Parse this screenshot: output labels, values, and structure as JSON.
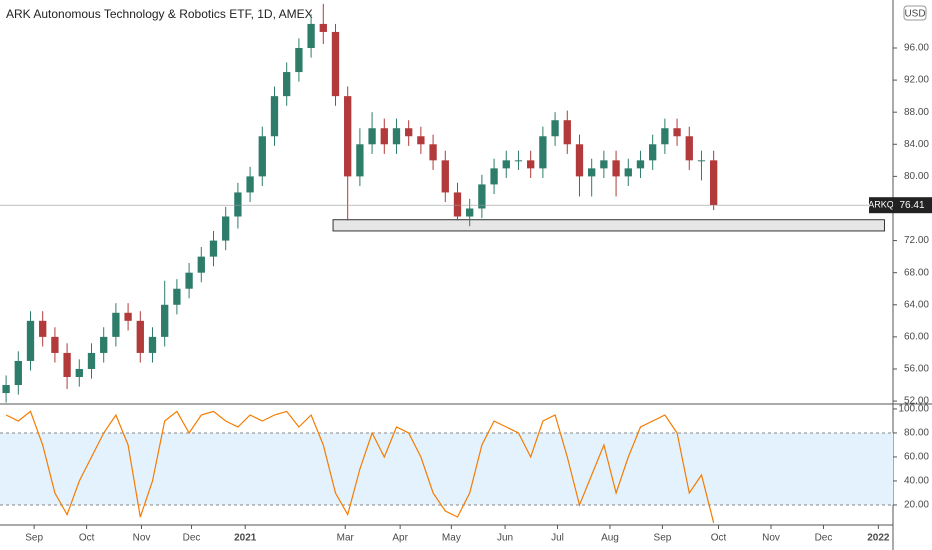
{
  "chart_data": [
    {
      "type": "candlestick",
      "title": "ARK Autonomous Technology & Robotics ETF, 1D, AMEX",
      "currency": "USD",
      "symbol": "ARKQ",
      "up_color": "#2e7d6b",
      "down_color": "#b23a3a",
      "xlim": [
        0,
        73.2
      ],
      "ylim": [
        51.76,
        101.98
      ],
      "yticks": [
        {
          "value": 52,
          "label": "52.00"
        },
        {
          "value": 56,
          "label": "56.00"
        },
        {
          "value": 60,
          "label": "60.00"
        },
        {
          "value": 64,
          "label": "64.00"
        },
        {
          "value": 68,
          "label": "68.00"
        },
        {
          "value": 72,
          "label": "72.00"
        },
        {
          "value": 76,
          "label": "76.00"
        },
        {
          "value": 80,
          "label": "80.00"
        },
        {
          "value": 84,
          "label": "84.00"
        },
        {
          "value": 88,
          "label": "88.00"
        },
        {
          "value": 92,
          "label": "92.00"
        },
        {
          "value": 96,
          "label": "96.00"
        }
      ],
      "x": [
        0.5,
        1.5,
        2.5,
        3.5,
        4.5,
        5.5,
        6.5,
        7.5,
        8.5,
        9.5,
        10.5,
        11.5,
        12.5,
        13.5,
        14.5,
        15.5,
        16.5,
        17.5,
        18.5,
        19.5,
        20.5,
        21.5,
        22.5,
        23.5,
        24.5,
        25.5,
        26.5,
        27.5,
        28.5,
        29.5,
        30.5,
        31.5,
        32.5,
        33.5,
        34.5,
        35.5,
        36.5,
        37.5,
        38.5,
        39.5,
        40.5,
        41.5,
        42.5,
        43.5,
        44.5,
        45.5,
        46.5,
        47.5,
        48.5,
        49.5,
        50.5,
        51.5,
        52.5,
        53.5,
        54.5,
        55.5,
        56.5,
        57.5,
        58.5
      ],
      "candles": [
        [
          53,
          55.2,
          51.8,
          54
        ],
        [
          54,
          58.2,
          52.8,
          57
        ],
        [
          57,
          63.2,
          55.8,
          62
        ],
        [
          62,
          63.2,
          58.8,
          60
        ],
        [
          60,
          61.2,
          56.8,
          58
        ],
        [
          58,
          59.2,
          53.5,
          55
        ],
        [
          55,
          57.2,
          53.8,
          56
        ],
        [
          56,
          59.2,
          54.8,
          58
        ],
        [
          58,
          61.2,
          56.8,
          60
        ],
        [
          60,
          64.2,
          58.8,
          63
        ],
        [
          63,
          64.2,
          60.8,
          62
        ],
        [
          62,
          63.2,
          56.8,
          58
        ],
        [
          58,
          61.2,
          56.8,
          60
        ],
        [
          60,
          67,
          58.8,
          64
        ],
        [
          64,
          67.2,
          62.8,
          66
        ],
        [
          66,
          69.2,
          64.8,
          68
        ],
        [
          68,
          71.2,
          66.8,
          70
        ],
        [
          70,
          73.2,
          68.8,
          72
        ],
        [
          72,
          76.2,
          70.8,
          75
        ],
        [
          75,
          79.2,
          73.5,
          78
        ],
        [
          78,
          81.2,
          76.8,
          80
        ],
        [
          80,
          86.2,
          78.8,
          85
        ],
        [
          85,
          91.2,
          83.8,
          90
        ],
        [
          90,
          94.2,
          88.8,
          93
        ],
        [
          93,
          97.2,
          91.8,
          96
        ],
        [
          96,
          100.2,
          94.8,
          99
        ],
        [
          99,
          101.5,
          96.5,
          98
        ],
        [
          98,
          99,
          88.8,
          90
        ],
        [
          90,
          91.2,
          74.5,
          80
        ],
        [
          80,
          86,
          78.8,
          84
        ],
        [
          84,
          88,
          82.8,
          86
        ],
        [
          86,
          87.2,
          82.8,
          84
        ],
        [
          84,
          87.2,
          82.8,
          86
        ],
        [
          86,
          87,
          83.8,
          85
        ],
        [
          85,
          86.2,
          82.8,
          84
        ],
        [
          84,
          85.2,
          80.8,
          82
        ],
        [
          82,
          83.2,
          76.8,
          78
        ],
        [
          78,
          79.2,
          74.5,
          75
        ],
        [
          75,
          77.2,
          73.8,
          76
        ],
        [
          76,
          80.2,
          74.8,
          79
        ],
        [
          79,
          82.2,
          77.8,
          81
        ],
        [
          81,
          83.2,
          79.8,
          82
        ],
        [
          82,
          83.2,
          80.8,
          82
        ],
        [
          82,
          83.2,
          79.8,
          81
        ],
        [
          81,
          86.2,
          79.8,
          85
        ],
        [
          85,
          88,
          83.8,
          87
        ],
        [
          87,
          88.2,
          82.8,
          84
        ],
        [
          84,
          85.2,
          77.5,
          80
        ],
        [
          80,
          82.2,
          77.5,
          81
        ],
        [
          81,
          83.2,
          79.8,
          82
        ],
        [
          82,
          83.2,
          77.5,
          80
        ],
        [
          80,
          82.2,
          78.8,
          81
        ],
        [
          81,
          83.2,
          79.8,
          82
        ],
        [
          82,
          85.2,
          80.8,
          84
        ],
        [
          84,
          87.2,
          82.8,
          86
        ],
        [
          86,
          87.2,
          83.8,
          85
        ],
        [
          85,
          86.2,
          80.8,
          82
        ],
        [
          82,
          83.2,
          79.5,
          82
        ],
        [
          82,
          83.2,
          75.8,
          76.41
        ]
      ],
      "zone": {
        "x": [
          27.3,
          72.5
        ],
        "y": [
          73.2,
          74.6
        ]
      }
    },
    {
      "type": "line",
      "color": "#f57c00",
      "band": [
        20,
        80
      ],
      "band_color": "#e3f2fd",
      "xlim": [
        0,
        73.2
      ],
      "ylim": [
        3.3,
        103.3
      ],
      "yticks": [
        {
          "value": 20,
          "label": "20.00"
        },
        {
          "value": 40,
          "label": "40.00"
        },
        {
          "value": 60,
          "label": "60.00"
        },
        {
          "value": 80,
          "label": "80.00"
        },
        {
          "value": 100,
          "label": "100.00"
        }
      ],
      "xticks": [
        {
          "value": 2.8,
          "label": "Sep"
        },
        {
          "value": 7.1,
          "label": "Oct"
        },
        {
          "value": 11.6,
          "label": "Nov"
        },
        {
          "value": 15.7,
          "label": "Dec"
        },
        {
          "value": 20.1,
          "label": "2021"
        },
        {
          "value": 28.3,
          "label": "Mar"
        },
        {
          "value": 32.8,
          "label": "Apr"
        },
        {
          "value": 37.0,
          "label": "May"
        },
        {
          "value": 41.4,
          "label": "Jun"
        },
        {
          "value": 45.7,
          "label": "Jul"
        },
        {
          "value": 50.0,
          "label": "Aug"
        },
        {
          "value": 54.3,
          "label": "Sep"
        },
        {
          "value": 58.9,
          "label": "Oct"
        },
        {
          "value": 63.2,
          "label": "Nov"
        },
        {
          "value": 67.5,
          "label": "Dec"
        },
        {
          "value": 72.0,
          "label": "2022"
        }
      ],
      "x": [
        0.5,
        1.5,
        2.5,
        3.5,
        4.5,
        5.5,
        6.5,
        7.5,
        8.5,
        9.5,
        10.5,
        11.5,
        12.5,
        13.5,
        14.5,
        15.5,
        16.5,
        17.5,
        18.5,
        19.5,
        20.5,
        21.5,
        22.5,
        23.5,
        24.5,
        25.5,
        26.5,
        27.5,
        28.5,
        29.5,
        30.5,
        31.5,
        32.5,
        33.5,
        34.5,
        35.5,
        36.5,
        37.5,
        38.5,
        39.5,
        40.5,
        41.5,
        42.5,
        43.5,
        44.5,
        45.5,
        46.5,
        47.5,
        48.5,
        49.5,
        50.5,
        51.5,
        52.5,
        53.5,
        54.5,
        55.5,
        56.5,
        57.5,
        58.5
      ],
      "values": [
        95,
        90,
        98,
        70,
        30,
        12,
        40,
        60,
        80,
        95,
        70,
        10,
        40,
        90,
        98,
        80,
        95,
        98,
        90,
        85,
        95,
        90,
        95,
        98,
        85,
        95,
        70,
        30,
        12,
        50,
        80,
        60,
        85,
        80,
        60,
        30,
        15,
        10,
        30,
        70,
        90,
        85,
        80,
        60,
        90,
        95,
        60,
        20,
        45,
        70,
        30,
        60,
        85,
        90,
        95,
        80,
        30,
        45,
        5
      ]
    }
  ]
}
